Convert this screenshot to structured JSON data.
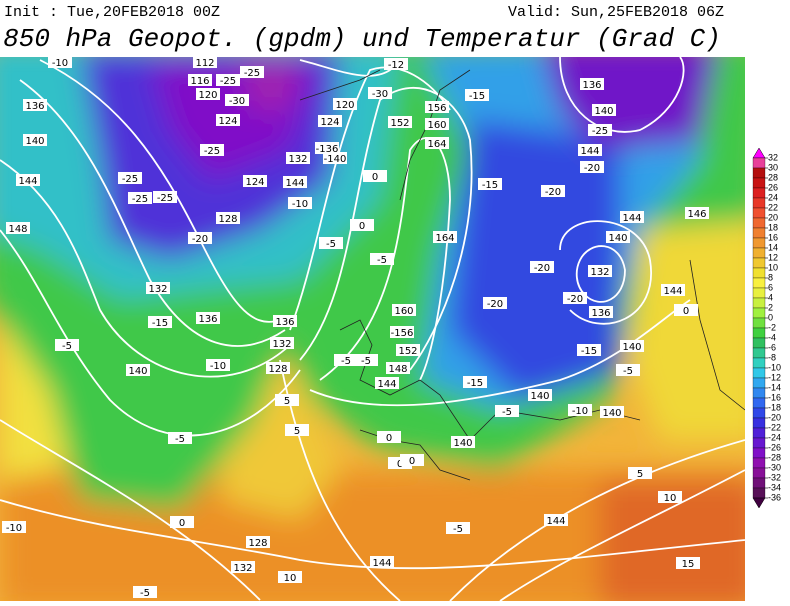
{
  "header": {
    "init": "Init : Tue,20FEB2018 00Z",
    "valid": "Valid: Sun,25FEB2018 06Z",
    "title": "850 hPa Geopot. (gpdm) und Temperatur (Grad C)"
  },
  "colorbar": {
    "ticks": [
      32,
      30,
      28,
      26,
      24,
      22,
      20,
      18,
      16,
      14,
      12,
      10,
      8,
      6,
      4,
      2,
      0,
      -2,
      -4,
      -6,
      -8,
      -10,
      -12,
      -14,
      -16,
      -18,
      -20,
      -22,
      -24,
      -26,
      -28,
      -30,
      -32,
      -34,
      -36
    ],
    "colors": [
      "#ff00ff",
      "#e8409a",
      "#b40f0f",
      "#c81414",
      "#dc2020",
      "#e83828",
      "#f05030",
      "#f06830",
      "#f08030",
      "#f09830",
      "#f0b030",
      "#f0c830",
      "#f0e030",
      "#f8f040",
      "#e8f040",
      "#c8f040",
      "#a0f040",
      "#70e040",
      "#40d040",
      "#30c060",
      "#30c890",
      "#30d0c0",
      "#30c8e8",
      "#30a8f0",
      "#3088f0",
      "#3068f0",
      "#3048e8",
      "#3830e0",
      "#5020d8",
      "#6818d0",
      "#8010c8",
      "#9010b0",
      "#881098",
      "#701078",
      "#581058",
      "#400040"
    ]
  },
  "contour_labels": [
    -10,
    112,
    116,
    -25,
    -25,
    120,
    -30,
    136,
    140,
    144,
    148,
    -25,
    -25,
    -25,
    -20,
    128,
    124,
    -25,
    132,
    -15,
    136,
    140,
    -10,
    -5,
    0,
    128,
    132,
    10,
    -5,
    -10,
    -5,
    136,
    132,
    128,
    5,
    5,
    0,
    0,
    -5,
    -5,
    164,
    160,
    -156,
    152,
    148,
    -5,
    -5,
    144,
    0,
    0,
    0,
    140,
    -15,
    -20,
    -20,
    -15,
    -20,
    -15,
    156,
    160,
    164,
    152,
    -12,
    -30,
    136,
    140,
    -25,
    144,
    -20,
    144,
    146,
    140,
    132,
    -20,
    136,
    -15,
    140,
    -5,
    140,
    -5,
    144,
    0,
    -10,
    140,
    5,
    10,
    144,
    144,
    15,
    -5,
    144,
    -10,
    132,
    -140,
    -136,
    124,
    120,
    124
  ]
}
